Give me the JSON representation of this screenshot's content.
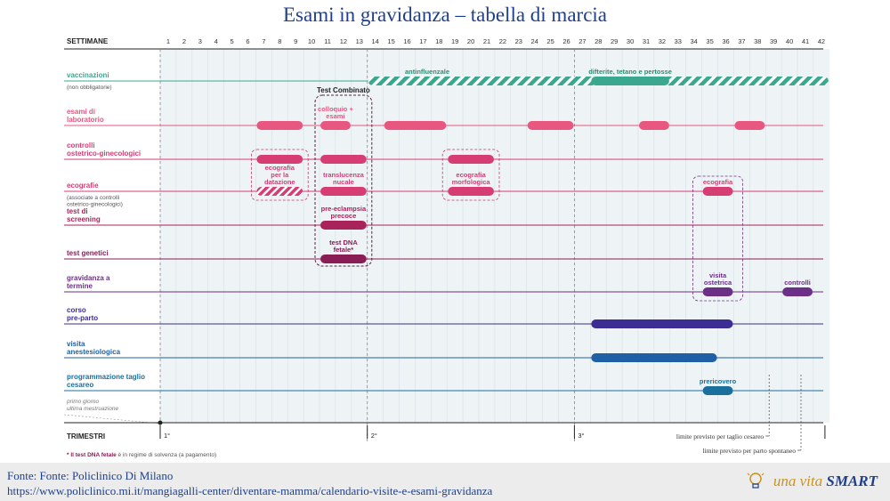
{
  "title": "Esami in gravidanza – tabella di marcia",
  "source": "Fonte: Fonte: Policlinico Di Milano",
  "url": "https://www.policlinico.mi.it/mangiagalli-center/diventare-mamma/calendario-visite-e-esami-gravidanza",
  "brand": {
    "prefix": "una vita ",
    "accent": "SMART"
  },
  "colors": {
    "title": "#1f3f8a",
    "teal": "#3aa88f",
    "pink": "#e8577f",
    "magenta": "#c4366f",
    "burgundy": "#8a1d55",
    "purple": "#6b2f86",
    "indigo": "#3b2d93",
    "blue": "#1f5fa6"
  },
  "chart_data": {
    "type": "gantt",
    "x_label": "SETTIMANE",
    "weeks": [
      1,
      2,
      3,
      4,
      5,
      6,
      7,
      8,
      9,
      10,
      11,
      12,
      13,
      14,
      15,
      16,
      17,
      18,
      19,
      20,
      21,
      22,
      23,
      24,
      25,
      26,
      27,
      28,
      29,
      30,
      31,
      32,
      33,
      34,
      35,
      36,
      37,
      38,
      39,
      40,
      41,
      42
    ],
    "rows": [
      {
        "label": "vaccinazioni",
        "sub": "(non obbligatorie)",
        "color": "#3aa88f",
        "bars": [
          {
            "start": 14,
            "end": 42,
            "hatched": true,
            "text": "antinfluenzale"
          },
          {
            "start": 28,
            "end": 32,
            "hatched": false,
            "text": "difterite, tetano e pertosse"
          }
        ]
      },
      {
        "label": "esami di laboratorio",
        "sub": "",
        "color": "#e8577f",
        "bars": [
          {
            "start": 7,
            "end": 9,
            "text": ""
          },
          {
            "start": 11,
            "end": 12,
            "text": "colloquio + esami"
          },
          {
            "start": 15,
            "end": 18,
            "text": ""
          },
          {
            "start": 24,
            "end": 26,
            "text": ""
          },
          {
            "start": 31,
            "end": 32,
            "text": ""
          },
          {
            "start": 37,
            "end": 38,
            "text": ""
          }
        ]
      },
      {
        "label": "controlli ostetrico-ginecologici",
        "sub": "",
        "color": "#d63d73",
        "bars": [
          {
            "start": 7,
            "end": 9,
            "text": ""
          },
          {
            "start": 11,
            "end": 13,
            "text": ""
          },
          {
            "start": 19,
            "end": 21,
            "text": ""
          }
        ]
      },
      {
        "label": "ecografie",
        "sub": "(associate a controlli ostetrico-ginecologici)",
        "color": "#d63d73",
        "bars": [
          {
            "start": 7,
            "end": 9,
            "hatched": true,
            "text": "ecografia per la datazione"
          },
          {
            "start": 11,
            "end": 13,
            "text": "translucenza nucale"
          },
          {
            "start": 19,
            "end": 21,
            "text": "ecografia morfologica"
          },
          {
            "start": 35,
            "end": 36,
            "text": "ecografia"
          }
        ]
      },
      {
        "label": "test di screening",
        "sub": "",
        "color": "#a8235a",
        "bars": [
          {
            "start": 11,
            "end": 13,
            "text": "pre-eclampsia precoce"
          }
        ]
      },
      {
        "label": "test genetici",
        "sub": "",
        "color": "#8a1d55",
        "bars": [
          {
            "start": 11,
            "end": 13,
            "text": "test DNA fetale*"
          }
        ]
      },
      {
        "label": "gravidanza a termine",
        "sub": "",
        "color": "#6b2f86",
        "bars": [
          {
            "start": 35,
            "end": 36,
            "text": "visita ostetrica"
          },
          {
            "start": 40,
            "end": 41,
            "text": "controlli"
          }
        ]
      },
      {
        "label": "corso pre-parto",
        "sub": "",
        "color": "#3b2d93",
        "bars": [
          {
            "start": 28,
            "end": 36,
            "text": ""
          }
        ]
      },
      {
        "label": "visita anestesiologica",
        "sub": "",
        "color": "#1f5fa6",
        "bars": [
          {
            "start": 28,
            "end": 35,
            "text": ""
          }
        ]
      },
      {
        "label": "programmazione taglio cesareo",
        "sub": "",
        "color": "#1a6f9c",
        "bars": [
          {
            "start": 35,
            "end": 36,
            "text": "prericovero"
          }
        ]
      }
    ],
    "groups": [
      {
        "label": "Test Combinato",
        "start": 11,
        "end": 13
      }
    ],
    "lmp_label": "primo giorno ultima mestruazione",
    "trimesters_label": "TRIMESTRI",
    "trimesters": [
      {
        "label": "1°",
        "start_week": 1
      },
      {
        "label": "2°",
        "start_week": 14
      },
      {
        "label": "3°",
        "start_week": 27
      }
    ],
    "limits": [
      {
        "label": "limite previsto per taglio cesareo",
        "week": 39
      },
      {
        "label": "limite previsto per parto spontaneo",
        "week": 41
      }
    ],
    "footnote_bold": "* Il test DNA fetale",
    "footnote_rest": " è in regime di solvenza (a pagamento)"
  }
}
